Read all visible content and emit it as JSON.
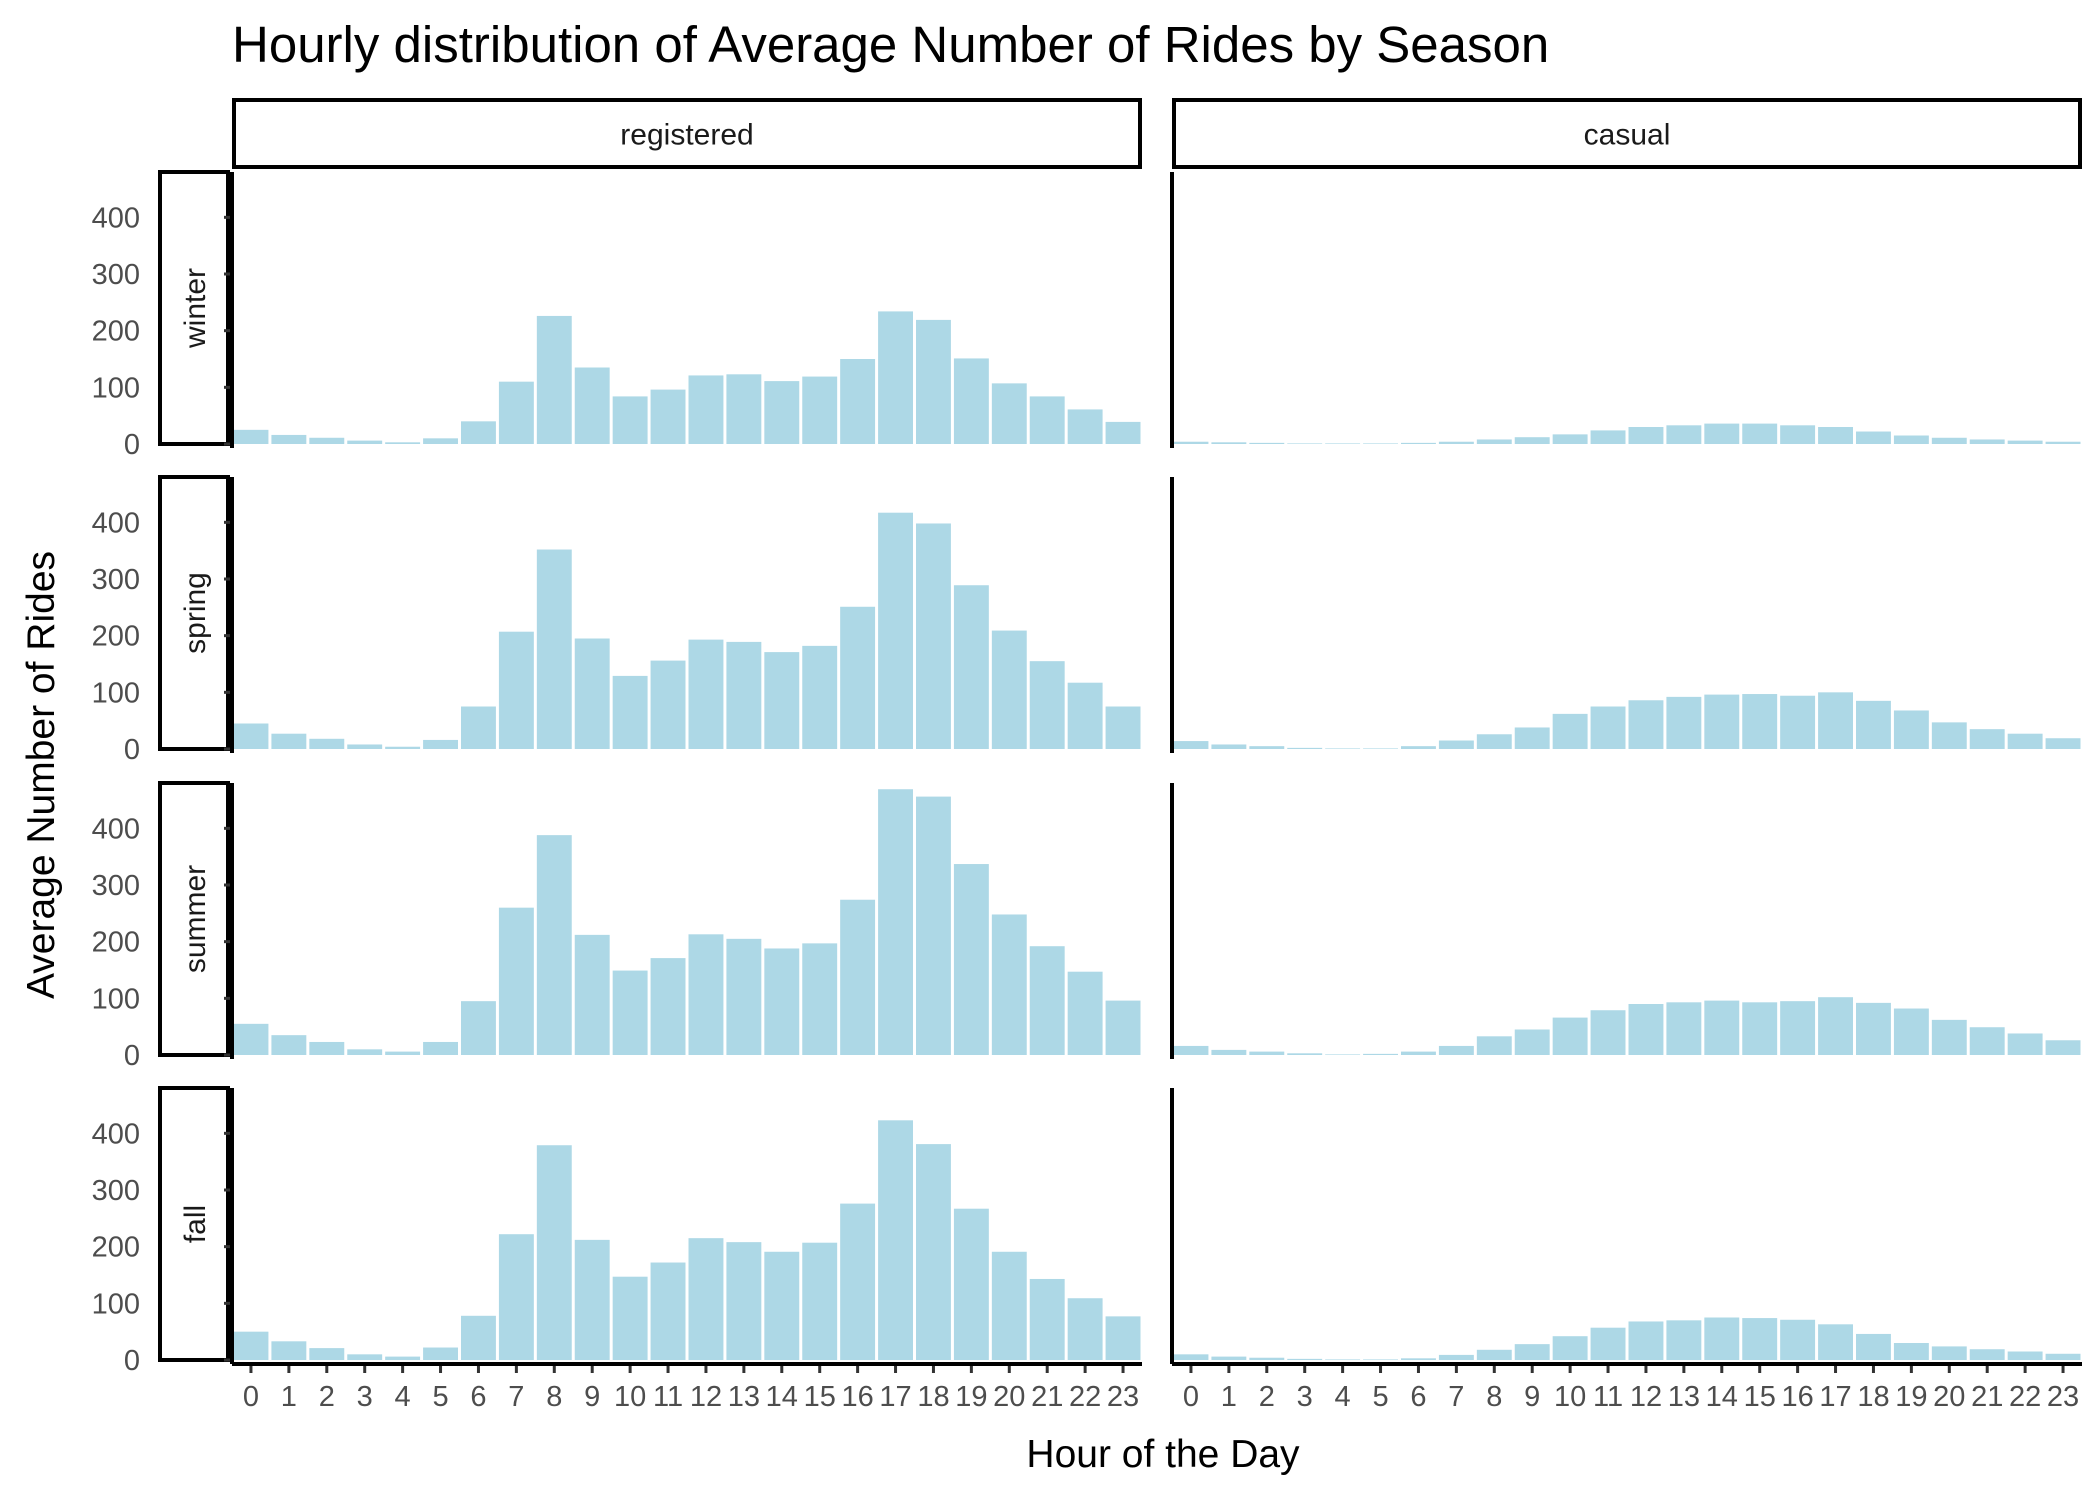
{
  "chart_data": {
    "type": "bar",
    "title": "Hourly distribution of Average Number of Rides by Season",
    "xlabel": "Hour of the Day",
    "ylabel": "Average Number of Rides",
    "ylim": [
      0,
      480
    ],
    "y_ticks": [
      0,
      100,
      200,
      300,
      400
    ],
    "x": [
      0,
      1,
      2,
      3,
      4,
      5,
      6,
      7,
      8,
      9,
      10,
      11,
      12,
      13,
      14,
      15,
      16,
      17,
      18,
      19,
      20,
      21,
      22,
      23
    ],
    "columns": [
      "registered",
      "casual"
    ],
    "rows": [
      "winter",
      "spring",
      "summer",
      "fall"
    ],
    "colors": {
      "bar": "#add8e6",
      "strip_border": "#000000"
    },
    "series": [
      {
        "name": "winter registered",
        "season": "winter",
        "type": "registered",
        "values": [
          25,
          16,
          11,
          6,
          3,
          10,
          40,
          110,
          226,
          135,
          84,
          96,
          121,
          123,
          111,
          119,
          150,
          234,
          219,
          151,
          107,
          84,
          61,
          39
        ]
      },
      {
        "name": "winter casual",
        "season": "winter",
        "type": "casual",
        "values": [
          4,
          3,
          2,
          1,
          1,
          1,
          2,
          4,
          8,
          12,
          17,
          24,
          30,
          33,
          36,
          36,
          33,
          30,
          22,
          15,
          11,
          8,
          6,
          4
        ]
      },
      {
        "name": "spring registered",
        "season": "spring",
        "type": "registered",
        "values": [
          45,
          27,
          18,
          8,
          4,
          16,
          75,
          207,
          352,
          195,
          129,
          156,
          193,
          189,
          171,
          182,
          251,
          417,
          398,
          289,
          209,
          155,
          117,
          75
        ]
      },
      {
        "name": "spring casual",
        "season": "spring",
        "type": "casual",
        "values": [
          14,
          8,
          5,
          2,
          1,
          1,
          5,
          15,
          26,
          38,
          62,
          75,
          86,
          92,
          96,
          97,
          94,
          100,
          85,
          68,
          47,
          35,
          27,
          19
        ]
      },
      {
        "name": "summer registered",
        "season": "summer",
        "type": "registered",
        "values": [
          55,
          35,
          23,
          10,
          6,
          23,
          95,
          260,
          388,
          212,
          149,
          171,
          213,
          205,
          188,
          197,
          274,
          469,
          456,
          337,
          248,
          192,
          147,
          96
        ]
      },
      {
        "name": "summer casual",
        "season": "summer",
        "type": "casual",
        "values": [
          16,
          9,
          6,
          3,
          1,
          2,
          6,
          16,
          33,
          45,
          66,
          79,
          90,
          93,
          96,
          93,
          95,
          102,
          92,
          82,
          62,
          49,
          38,
          26
        ]
      },
      {
        "name": "fall registered",
        "season": "fall",
        "type": "registered",
        "values": [
          50,
          33,
          21,
          10,
          6,
          22,
          78,
          222,
          379,
          212,
          147,
          172,
          215,
          208,
          191,
          207,
          276,
          423,
          381,
          267,
          191,
          143,
          109,
          77
        ]
      },
      {
        "name": "fall casual",
        "season": "fall",
        "type": "casual",
        "values": [
          10,
          6,
          4,
          2,
          1,
          1,
          3,
          9,
          18,
          28,
          42,
          57,
          68,
          70,
          75,
          74,
          71,
          63,
          46,
          30,
          24,
          19,
          15,
          11
        ]
      }
    ]
  }
}
